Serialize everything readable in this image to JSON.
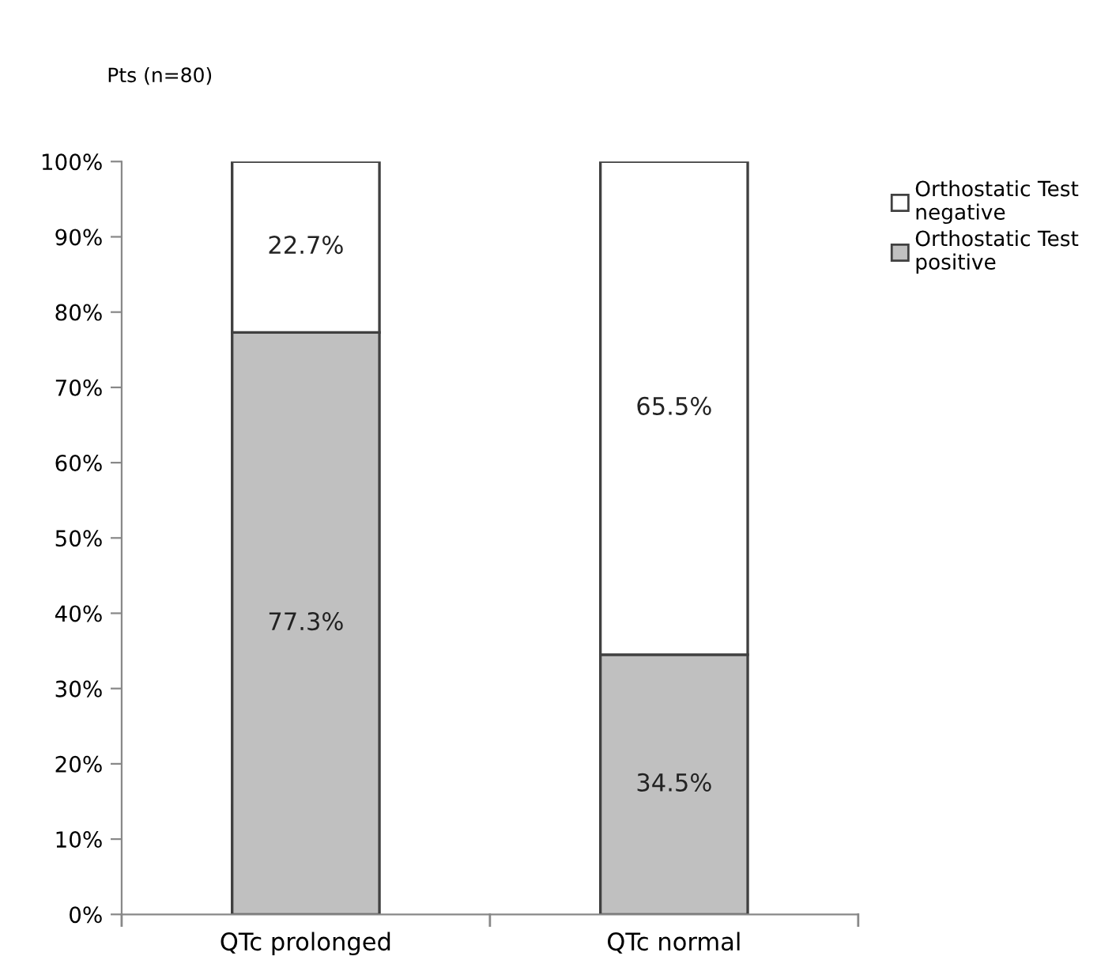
{
  "chart_data": {
    "type": "bar",
    "stacked": true,
    "ylabel": "Pts (n=80)",
    "categories": [
      "QTc prolonged",
      "QTc normal"
    ],
    "series": [
      {
        "name": "Orthostatic Test positive",
        "color": "#c0c0c0",
        "values": [
          77.3,
          34.5
        ],
        "value_labels": [
          "77.3%",
          "34.5%"
        ]
      },
      {
        "name": "Orthostatic Test negative",
        "color": "#ffffff",
        "values": [
          22.7,
          65.5
        ],
        "value_labels": [
          "22.7%",
          "65.5%"
        ]
      }
    ],
    "ylim": [
      0,
      100
    ],
    "yticks": [
      {
        "value": 0,
        "label": "0%"
      },
      {
        "value": 10,
        "label": "10%"
      },
      {
        "value": 20,
        "label": "20%"
      },
      {
        "value": 30,
        "label": "30%"
      },
      {
        "value": 40,
        "label": "40%"
      },
      {
        "value": 50,
        "label": "50%"
      },
      {
        "value": 60,
        "label": "60%"
      },
      {
        "value": 70,
        "label": "70%"
      },
      {
        "value": 80,
        "label": "80%"
      },
      {
        "value": 90,
        "label": "90%"
      },
      {
        "value": 100,
        "label": "100%"
      }
    ],
    "grid": false,
    "legend": "top right"
  }
}
